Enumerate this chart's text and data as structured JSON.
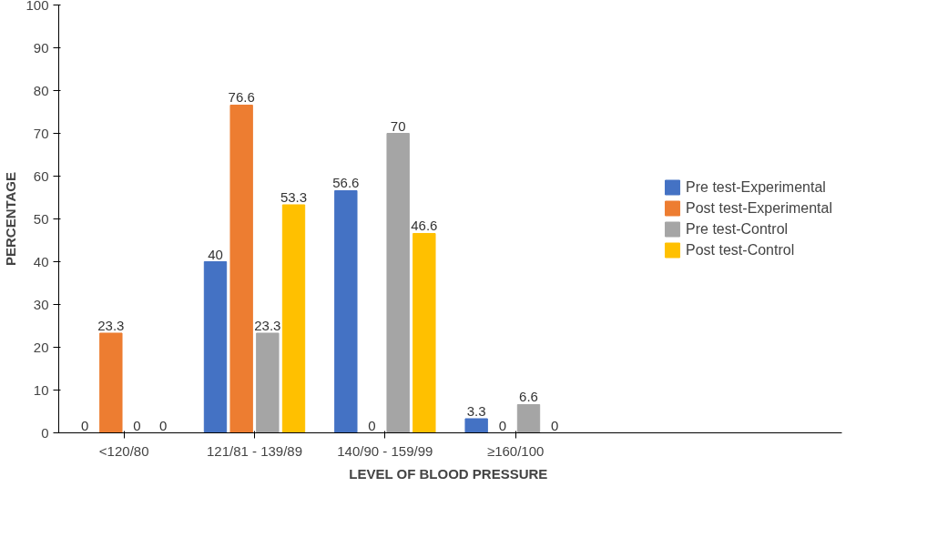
{
  "chart_data": {
    "type": "bar",
    "xlabel": "LEVEL OF  BLOOD PRESSURE",
    "ylabel": "PERCENTAGE",
    "categories": [
      "<120/80",
      "121/81 - 139/89",
      "140/90 - 159/99",
      "≥160/100"
    ],
    "series": [
      {
        "name": "Pre test-Experimental",
        "color": "#4472c4",
        "values": [
          0,
          40,
          56.6,
          3.3
        ]
      },
      {
        "name": "Post test-Experimental",
        "color": "#ed7d31",
        "values": [
          23.3,
          76.6,
          0,
          0
        ]
      },
      {
        "name": "Pre test-Control",
        "color": "#a5a5a5",
        "values": [
          0,
          23.3,
          70,
          6.6
        ]
      },
      {
        "name": "Post test-Control",
        "color": "#ffc000",
        "values": [
          0,
          53.3,
          46.6,
          0
        ]
      }
    ],
    "ylim": [
      0,
      100
    ],
    "yticks": [
      0,
      10,
      20,
      30,
      40,
      50,
      60,
      70,
      80,
      90,
      100
    ],
    "grid": false,
    "legend": "right",
    "data_labels": true
  }
}
